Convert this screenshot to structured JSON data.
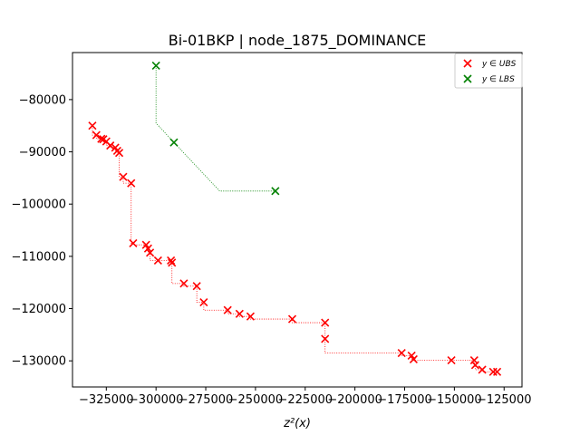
{
  "chart_data": {
    "type": "scatter",
    "title": "Bi-01BKP | node_1875_DOMINANCE",
    "xlabel": "z²(x)",
    "ylabel": "",
    "xlim": [
      -342000,
      -116000
    ],
    "ylim": [
      -135000,
      -71000
    ],
    "xticks": [
      -325000,
      -300000,
      -275000,
      -250000,
      -225000,
      -200000,
      -175000,
      -150000,
      -125000
    ],
    "xtick_labels": [
      "−325000",
      "−300000",
      "−275000",
      "−250000",
      "−225000",
      "−200000",
      "−175000",
      "−150000",
      "−125000"
    ],
    "yticks": [
      -80000,
      -90000,
      -100000,
      -110000,
      -120000,
      -130000
    ],
    "ytick_labels": [
      "−80000",
      "−90000",
      "−100000",
      "−110000",
      "−120000",
      "−130000"
    ],
    "grid": false,
    "legend_position": "top-right",
    "series": [
      {
        "name": "y ∈ UBS",
        "color": "#ff0000",
        "marker": "x",
        "staircase": true,
        "points": [
          [
            -332000,
            -85000
          ],
          [
            -330000,
            -86800
          ],
          [
            -327500,
            -87500
          ],
          [
            -326500,
            -87600
          ],
          [
            -325000,
            -88000
          ],
          [
            -323000,
            -88800
          ],
          [
            -320500,
            -89200
          ],
          [
            -319500,
            -89800
          ],
          [
            -318500,
            -90200
          ],
          [
            -316500,
            -94800
          ],
          [
            -312500,
            -96000
          ],
          [
            -311500,
            -107500
          ],
          [
            -305000,
            -107800
          ],
          [
            -304000,
            -108500
          ],
          [
            -303000,
            -109300
          ],
          [
            -299000,
            -110800
          ],
          [
            -292500,
            -110800
          ],
          [
            -292000,
            -111200
          ],
          [
            -286000,
            -115200
          ],
          [
            -279500,
            -115700
          ],
          [
            -276000,
            -118800
          ],
          [
            -264000,
            -120300
          ],
          [
            -258000,
            -121000
          ],
          [
            -252500,
            -121500
          ],
          [
            -231500,
            -122000
          ],
          [
            -215000,
            -122700
          ],
          [
            -215000,
            -125800
          ],
          [
            -176500,
            -128500
          ],
          [
            -171500,
            -129000
          ],
          [
            -170500,
            -129700
          ],
          [
            -151500,
            -129900
          ],
          [
            -140000,
            -129900
          ],
          [
            -139500,
            -130800
          ],
          [
            -136000,
            -131700
          ],
          [
            -130500,
            -132100
          ],
          [
            -128500,
            -132100
          ]
        ]
      },
      {
        "name": "y ∈ LBS",
        "color": "#008000",
        "marker": "x",
        "staircase": false,
        "points": [
          [
            -300000,
            -73500
          ],
          [
            -291000,
            -88200
          ],
          [
            -240000,
            -97500
          ]
        ]
      }
    ]
  }
}
